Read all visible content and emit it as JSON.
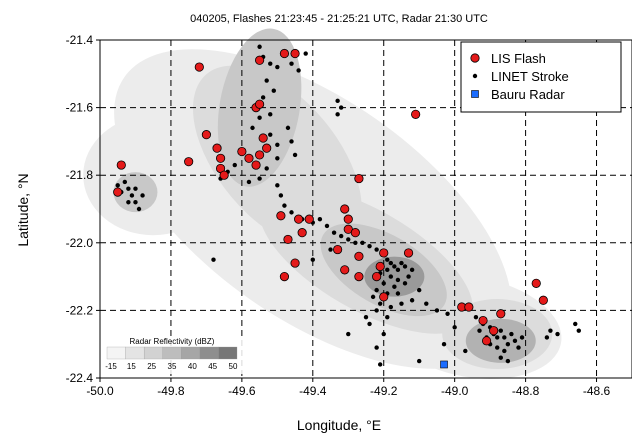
{
  "chart_data": {
    "type": "scatter",
    "title": "040205, Flashes 21:23:45 - 21:25:21 UTC, Radar 21:30 UTC",
    "xlabel": "Longitude, °E",
    "ylabel": "Latitude, °N",
    "xlim": [
      -50.0,
      -48.5
    ],
    "ylim": [
      -22.4,
      -21.4
    ],
    "xticks": [
      "-50.0",
      "-49.8",
      "-49.6",
      "-49.4",
      "-49.2",
      "-49.0",
      "-48.8",
      "-48.6"
    ],
    "xtick_values": [
      -50.0,
      -49.8,
      -49.6,
      -49.4,
      -49.2,
      -49.0,
      -48.8,
      -48.6
    ],
    "yticks": [
      "-21.4",
      "-21.6",
      "-21.8",
      "-22.0",
      "-22.2",
      "-22.4"
    ],
    "ytick_values": [
      -21.4,
      -21.6,
      -21.8,
      -22.0,
      -22.2,
      -22.4
    ],
    "grid": true,
    "legend_position": "top-right",
    "series": [
      {
        "name": "LIS Flash",
        "marker": "circle",
        "color": "#e41a1a",
        "points": [
          [
            -49.72,
            -21.48
          ],
          [
            -49.55,
            -21.46
          ],
          [
            -49.48,
            -21.44
          ],
          [
            -49.45,
            -21.44
          ],
          [
            -49.56,
            -21.6
          ],
          [
            -49.55,
            -21.59
          ],
          [
            -49.11,
            -21.62
          ],
          [
            -49.7,
            -21.68
          ],
          [
            -49.54,
            -21.69
          ],
          [
            -49.53,
            -21.72
          ],
          [
            -49.55,
            -21.74
          ],
          [
            -49.67,
            -21.72
          ],
          [
            -49.6,
            -21.73
          ],
          [
            -49.58,
            -21.75
          ],
          [
            -49.56,
            -21.77
          ],
          [
            -49.75,
            -21.76
          ],
          [
            -49.66,
            -21.75
          ],
          [
            -49.66,
            -21.78
          ],
          [
            -49.65,
            -21.8
          ],
          [
            -49.94,
            -21.77
          ],
          [
            -49.95,
            -21.85
          ],
          [
            -49.27,
            -21.81
          ],
          [
            -49.49,
            -21.92
          ],
          [
            -49.44,
            -21.93
          ],
          [
            -49.41,
            -21.93
          ],
          [
            -49.31,
            -21.9
          ],
          [
            -49.3,
            -21.93
          ],
          [
            -49.3,
            -21.96
          ],
          [
            -49.28,
            -21.97
          ],
          [
            -49.43,
            -21.97
          ],
          [
            -49.47,
            -21.99
          ],
          [
            -49.33,
            -22.02
          ],
          [
            -49.27,
            -22.04
          ],
          [
            -49.2,
            -22.03
          ],
          [
            -49.21,
            -22.07
          ],
          [
            -49.13,
            -22.03
          ],
          [
            -49.45,
            -22.06
          ],
          [
            -49.31,
            -22.08
          ],
          [
            -49.27,
            -22.1
          ],
          [
            -49.48,
            -22.1
          ],
          [
            -49.22,
            -22.1
          ],
          [
            -49.2,
            -22.16
          ],
          [
            -48.98,
            -22.19
          ],
          [
            -48.96,
            -22.19
          ],
          [
            -48.77,
            -22.12
          ],
          [
            -48.75,
            -22.17
          ],
          [
            -48.92,
            -22.23
          ],
          [
            -48.89,
            -22.26
          ],
          [
            -48.91,
            -22.29
          ],
          [
            -48.87,
            -22.21
          ]
        ]
      },
      {
        "name": "LINET Stroke",
        "marker": "dot",
        "color": "#000000",
        "points": [
          [
            -49.55,
            -21.42
          ],
          [
            -49.54,
            -21.45
          ],
          [
            -49.52,
            -21.47
          ],
          [
            -49.5,
            -21.48
          ],
          [
            -49.46,
            -21.47
          ],
          [
            -49.44,
            -21.49
          ],
          [
            -49.42,
            -21.44
          ],
          [
            -49.53,
            -21.52
          ],
          [
            -49.51,
            -21.55
          ],
          [
            -49.54,
            -21.57
          ],
          [
            -49.52,
            -21.62
          ],
          [
            -49.55,
            -21.63
          ],
          [
            -49.57,
            -21.66
          ],
          [
            -49.52,
            -21.68
          ],
          [
            -49.5,
            -21.71
          ],
          [
            -49.47,
            -21.66
          ],
          [
            -49.46,
            -21.7
          ],
          [
            -49.45,
            -21.74
          ],
          [
            -49.5,
            -21.75
          ],
          [
            -49.53,
            -21.78
          ],
          [
            -49.55,
            -21.81
          ],
          [
            -49.58,
            -21.82
          ],
          [
            -49.62,
            -21.77
          ],
          [
            -49.64,
            -21.79
          ],
          [
            -49.66,
            -21.81
          ],
          [
            -49.33,
            -21.58
          ],
          [
            -49.32,
            -21.6
          ],
          [
            -49.33,
            -21.62
          ],
          [
            -49.95,
            -21.83
          ],
          [
            -49.94,
            -21.85
          ],
          [
            -49.93,
            -21.82
          ],
          [
            -49.92,
            -21.84
          ],
          [
            -49.91,
            -21.86
          ],
          [
            -49.9,
            -21.88
          ],
          [
            -49.89,
            -21.9
          ],
          [
            -49.92,
            -21.88
          ],
          [
            -49.9,
            -21.84
          ],
          [
            -49.88,
            -21.86
          ],
          [
            -49.5,
            -21.83
          ],
          [
            -49.49,
            -21.86
          ],
          [
            -49.48,
            -21.89
          ],
          [
            -49.46,
            -21.91
          ],
          [
            -49.43,
            -21.93
          ],
          [
            -49.4,
            -21.94
          ],
          [
            -49.38,
            -21.93
          ],
          [
            -49.36,
            -21.95
          ],
          [
            -49.34,
            -21.97
          ],
          [
            -49.32,
            -21.98
          ],
          [
            -49.3,
            -21.99
          ],
          [
            -49.28,
            -22.0
          ],
          [
            -49.26,
            -22.0
          ],
          [
            -49.24,
            -22.01
          ],
          [
            -49.22,
            -22.02
          ],
          [
            -49.2,
            -22.03
          ],
          [
            -49.19,
            -22.05
          ],
          [
            -49.18,
            -22.06
          ],
          [
            -49.17,
            -22.07
          ],
          [
            -49.16,
            -22.08
          ],
          [
            -49.15,
            -22.06
          ],
          [
            -49.14,
            -22.07
          ],
          [
            -49.19,
            -22.08
          ],
          [
            -49.21,
            -22.09
          ],
          [
            -49.18,
            -22.1
          ],
          [
            -49.16,
            -22.11
          ],
          [
            -49.2,
            -22.12
          ],
          [
            -49.17,
            -22.13
          ],
          [
            -49.14,
            -22.12
          ],
          [
            -49.22,
            -22.14
          ],
          [
            -49.19,
            -22.15
          ],
          [
            -49.16,
            -22.15
          ],
          [
            -49.13,
            -22.1
          ],
          [
            -49.12,
            -22.08
          ],
          [
            -49.23,
            -22.16
          ],
          [
            -49.21,
            -22.18
          ],
          [
            -49.18,
            -22.19
          ],
          [
            -49.15,
            -22.18
          ],
          [
            -49.12,
            -22.17
          ],
          [
            -49.22,
            -22.2
          ],
          [
            -49.19,
            -22.22
          ],
          [
            -49.24,
            -22.24
          ],
          [
            -49.2,
            -22.27
          ],
          [
            -49.22,
            -22.31
          ],
          [
            -49.21,
            -22.36
          ],
          [
            -49.1,
            -22.14
          ],
          [
            -49.08,
            -22.18
          ],
          [
            -49.05,
            -22.2
          ],
          [
            -49.02,
            -22.21
          ],
          [
            -48.94,
            -22.22
          ],
          [
            -48.92,
            -22.24
          ],
          [
            -48.9,
            -22.25
          ],
          [
            -48.89,
            -22.27
          ],
          [
            -48.88,
            -22.28
          ],
          [
            -48.87,
            -22.26
          ],
          [
            -48.86,
            -22.28
          ],
          [
            -48.85,
            -22.3
          ],
          [
            -48.84,
            -22.27
          ],
          [
            -48.83,
            -22.29
          ],
          [
            -48.88,
            -22.31
          ],
          [
            -48.86,
            -22.32
          ],
          [
            -48.9,
            -22.3
          ],
          [
            -48.82,
            -22.31
          ],
          [
            -48.81,
            -22.28
          ],
          [
            -48.87,
            -22.34
          ],
          [
            -48.85,
            -22.35
          ],
          [
            -48.91,
            -22.28
          ],
          [
            -48.93,
            -22.26
          ],
          [
            -48.73,
            -22.26
          ],
          [
            -48.74,
            -22.28
          ],
          [
            -48.71,
            -22.27
          ],
          [
            -48.66,
            -22.24
          ],
          [
            -48.65,
            -22.26
          ],
          [
            -49.68,
            -22.05
          ],
          [
            -49.35,
            -22.02
          ],
          [
            -49.4,
            -22.05
          ],
          [
            -49.25,
            -22.22
          ],
          [
            -49.0,
            -22.25
          ],
          [
            -49.03,
            -22.3
          ],
          [
            -48.97,
            -22.32
          ],
          [
            -49.3,
            -22.27
          ],
          [
            -49.1,
            -22.35
          ]
        ]
      },
      {
        "name": "Bauru Radar",
        "marker": "square",
        "color": "#1a6cff",
        "points": [
          [
            -49.03,
            -22.36
          ]
        ]
      }
    ],
    "inset_legend": {
      "label": "Radar Reflectivity (dBZ)",
      "ticks": [
        "-15",
        "15",
        "25",
        "35",
        "40",
        "45",
        "50"
      ]
    },
    "background_field": "radar reflectivity (grey shading)"
  }
}
